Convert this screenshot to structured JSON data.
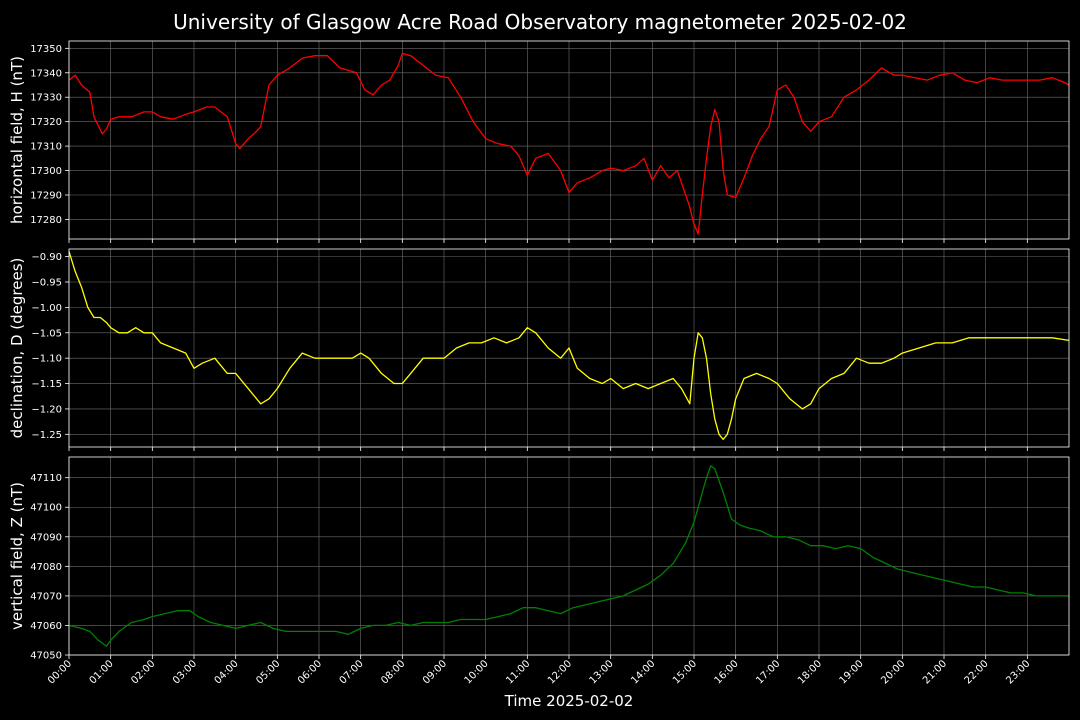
{
  "title": "University of Glasgow Acre Road Observatory magnetometer 2025-02-02",
  "xlabel": "Time 2025-02-02",
  "x_ticks": [
    "00:00",
    "01:00",
    "02:00",
    "03:00",
    "04:00",
    "05:00",
    "06:00",
    "07:00",
    "08:00",
    "09:00",
    "10:00",
    "11:00",
    "12:00",
    "13:00",
    "14:00",
    "15:00",
    "16:00",
    "17:00",
    "18:00",
    "19:00",
    "20:00",
    "21:00",
    "22:00",
    "23:00"
  ],
  "chart_data": [
    {
      "type": "line",
      "ylabel": "horizontal field, H (nT)",
      "color": "#ff0000",
      "xlim": [
        0,
        24
      ],
      "ylim": [
        17272,
        17353
      ],
      "yticks": [
        17280,
        17290,
        17300,
        17310,
        17320,
        17330,
        17340,
        17350
      ],
      "grid": true,
      "series": [
        {
          "x": [
            0,
            0.15,
            0.3,
            0.5,
            0.6,
            0.8,
            0.9,
            1.0,
            1.2,
            1.5,
            1.8,
            2.0,
            2.2,
            2.5,
            2.8,
            3.0,
            3.3,
            3.5,
            3.8,
            4.0,
            4.1,
            4.3,
            4.5,
            4.6,
            4.8,
            5.0,
            5.3,
            5.6,
            5.9,
            6.2,
            6.5,
            6.7,
            6.9,
            7.1,
            7.3,
            7.5,
            7.7,
            7.9,
            8.0,
            8.2,
            8.5,
            8.8,
            9.1,
            9.4,
            9.7,
            10.0,
            10.3,
            10.6,
            10.8,
            11.0,
            11.2,
            11.5,
            11.8,
            12.0,
            12.2,
            12.5,
            12.8,
            13.0,
            13.3,
            13.6,
            13.8,
            14.0,
            14.2,
            14.4,
            14.6,
            14.8,
            14.9,
            15.0,
            15.1,
            15.2,
            15.3,
            15.4,
            15.5,
            15.6,
            15.7,
            15.8,
            16.0,
            16.2,
            16.4,
            16.6,
            16.8,
            17.0,
            17.2,
            17.4,
            17.6,
            17.8,
            18.0,
            18.3,
            18.6,
            18.9,
            19.2,
            19.5,
            19.8,
            20.0,
            20.3,
            20.6,
            20.9,
            21.2,
            21.5,
            21.8,
            22.1,
            22.4,
            22.7,
            23.0,
            23.3,
            23.6,
            23.9,
            24.0
          ],
          "y": [
            17337,
            17339,
            17335,
            17332,
            17322,
            17315,
            17317,
            17321,
            17322,
            17322,
            17324,
            17324,
            17322,
            17321,
            17323,
            17324,
            17326,
            17326,
            17322,
            17311,
            17309,
            17313,
            17316,
            17318,
            17335,
            17339,
            17342,
            17346,
            17347,
            17347,
            17342,
            17341,
            17340,
            17333,
            17331,
            17335,
            17337,
            17343,
            17348,
            17347,
            17343,
            17339,
            17338,
            17330,
            17320,
            17313,
            17311,
            17310,
            17306,
            17298,
            17305,
            17307,
            17300,
            17291,
            17295,
            17297,
            17300,
            17301,
            17300,
            17302,
            17305,
            17296,
            17302,
            17297,
            17300,
            17290,
            17285,
            17278,
            17274,
            17290,
            17305,
            17318,
            17325,
            17320,
            17300,
            17290,
            17289,
            17297,
            17306,
            17313,
            17318,
            17333,
            17335,
            17330,
            17320,
            17316,
            17320,
            17322,
            17330,
            17333,
            17337,
            17342,
            17339,
            17339,
            17338,
            17337,
            17339,
            17340,
            17337,
            17336,
            17338,
            17337,
            17337,
            17337,
            17337,
            17338,
            17336,
            17335
          ]
        }
      ]
    },
    {
      "type": "line",
      "ylabel": "declination, D (degrees)",
      "color": "#ffff00",
      "xlim": [
        0,
        24
      ],
      "ylim": [
        -1.275,
        -0.885
      ],
      "yticks": [
        -0.9,
        -0.95,
        -1.0,
        -1.05,
        -1.1,
        -1.15,
        -1.2,
        -1.25
      ],
      "ytick_labels": [
        "−0.90",
        "−0.95",
        "−1.00",
        "−1.05",
        "−1.10",
        "−1.15",
        "−1.20",
        "−1.25"
      ],
      "grid": true,
      "series": [
        {
          "x": [
            0,
            0.15,
            0.3,
            0.45,
            0.6,
            0.75,
            0.9,
            1.0,
            1.2,
            1.4,
            1.6,
            1.8,
            2.0,
            2.2,
            2.5,
            2.8,
            3.0,
            3.2,
            3.5,
            3.8,
            4.0,
            4.3,
            4.6,
            4.8,
            5.0,
            5.3,
            5.6,
            5.9,
            6.2,
            6.5,
            6.8,
            7.0,
            7.2,
            7.5,
            7.8,
            8.0,
            8.2,
            8.5,
            8.8,
            9.0,
            9.3,
            9.6,
            9.9,
            10.2,
            10.5,
            10.8,
            11.0,
            11.2,
            11.5,
            11.8,
            12.0,
            12.2,
            12.5,
            12.8,
            13.0,
            13.3,
            13.6,
            13.9,
            14.2,
            14.5,
            14.7,
            14.9,
            15.0,
            15.1,
            15.2,
            15.3,
            15.4,
            15.5,
            15.6,
            15.7,
            15.8,
            15.9,
            16.0,
            16.2,
            16.5,
            16.8,
            17.0,
            17.3,
            17.6,
            17.8,
            18.0,
            18.3,
            18.6,
            18.9,
            19.2,
            19.5,
            19.8,
            20.0,
            20.4,
            20.8,
            21.2,
            21.6,
            22.0,
            22.4,
            22.8,
            23.2,
            23.6,
            24.0
          ],
          "y": [
            -0.89,
            -0.93,
            -0.96,
            -1.0,
            -1.02,
            -1.02,
            -1.03,
            -1.04,
            -1.05,
            -1.05,
            -1.04,
            -1.05,
            -1.05,
            -1.07,
            -1.08,
            -1.09,
            -1.12,
            -1.11,
            -1.1,
            -1.13,
            -1.13,
            -1.16,
            -1.19,
            -1.18,
            -1.16,
            -1.12,
            -1.09,
            -1.1,
            -1.1,
            -1.1,
            -1.1,
            -1.09,
            -1.1,
            -1.13,
            -1.15,
            -1.15,
            -1.13,
            -1.1,
            -1.1,
            -1.1,
            -1.08,
            -1.07,
            -1.07,
            -1.06,
            -1.07,
            -1.06,
            -1.04,
            -1.05,
            -1.08,
            -1.1,
            -1.08,
            -1.12,
            -1.14,
            -1.15,
            -1.14,
            -1.16,
            -1.15,
            -1.16,
            -1.15,
            -1.14,
            -1.16,
            -1.19,
            -1.1,
            -1.05,
            -1.06,
            -1.1,
            -1.17,
            -1.22,
            -1.25,
            -1.26,
            -1.25,
            -1.22,
            -1.18,
            -1.14,
            -1.13,
            -1.14,
            -1.15,
            -1.18,
            -1.2,
            -1.19,
            -1.16,
            -1.14,
            -1.13,
            -1.1,
            -1.11,
            -1.11,
            -1.1,
            -1.09,
            -1.08,
            -1.07,
            -1.07,
            -1.06,
            -1.06,
            -1.06,
            -1.06,
            -1.06,
            -1.06,
            -1.065
          ]
        }
      ]
    },
    {
      "type": "line",
      "ylabel": "vertical field, Z (nT)",
      "color": "#008000",
      "xlim": [
        0,
        24
      ],
      "ylim": [
        47050,
        47117
      ],
      "yticks": [
        47050,
        47060,
        47070,
        47080,
        47090,
        47100,
        47110
      ],
      "grid": true,
      "series": [
        {
          "x": [
            0,
            0.3,
            0.5,
            0.7,
            0.9,
            1.0,
            1.2,
            1.5,
            1.8,
            2.0,
            2.3,
            2.6,
            2.9,
            3.1,
            3.4,
            3.7,
            4.0,
            4.3,
            4.6,
            4.9,
            5.2,
            5.5,
            5.8,
            6.1,
            6.4,
            6.7,
            7.0,
            7.3,
            7.6,
            7.9,
            8.2,
            8.5,
            8.8,
            9.1,
            9.4,
            9.7,
            10.0,
            10.3,
            10.6,
            10.9,
            11.2,
            11.5,
            11.8,
            12.1,
            12.4,
            12.7,
            13.0,
            13.3,
            13.6,
            13.9,
            14.2,
            14.5,
            14.8,
            15.0,
            15.1,
            15.2,
            15.3,
            15.4,
            15.5,
            15.7,
            15.9,
            16.1,
            16.3,
            16.6,
            16.9,
            17.2,
            17.5,
            17.8,
            18.1,
            18.4,
            18.7,
            19.0,
            19.3,
            19.6,
            19.9,
            20.2,
            20.5,
            20.8,
            21.1,
            21.4,
            21.7,
            22.0,
            22.3,
            22.6,
            22.9,
            23.2,
            23.5,
            23.8,
            24.0
          ],
          "y": [
            47060,
            47059,
            47058,
            47055,
            47053,
            47055,
            47058,
            47061,
            47062,
            47063,
            47064,
            47065,
            47065,
            47063,
            47061,
            47060,
            47059,
            47060,
            47061,
            47059,
            47058,
            47058,
            47058,
            47058,
            47058,
            47057,
            47059,
            47060,
            47060,
            47061,
            47060,
            47061,
            47061,
            47061,
            47062,
            47062,
            47062,
            47063,
            47064,
            47066,
            47066,
            47065,
            47064,
            47066,
            47067,
            47068,
            47069,
            47070,
            47072,
            47074,
            47077,
            47081,
            47088,
            47095,
            47100,
            47105,
            47110,
            47114,
            47113,
            47105,
            47096,
            47094,
            47093,
            47092,
            47090,
            47090,
            47089,
            47087,
            47087,
            47086,
            47087,
            47086,
            47083,
            47081,
            47079,
            47078,
            47077,
            47076,
            47075,
            47074,
            47073,
            47073,
            47072,
            47071,
            47071,
            47070,
            47070,
            47070,
            47070
          ]
        }
      ]
    }
  ]
}
